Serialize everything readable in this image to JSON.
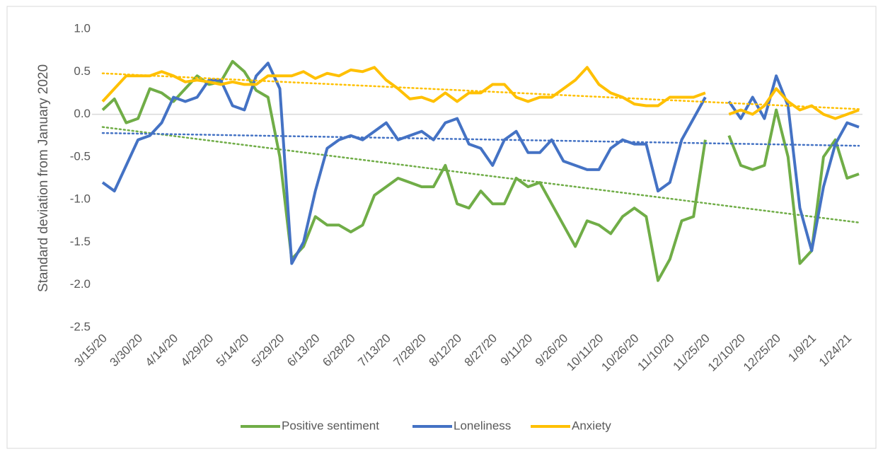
{
  "chart_data": {
    "type": "line",
    "y_label": "Standard deviation from January 2020",
    "categories": [
      "3/15/20",
      null,
      null,
      "3/30/20",
      null,
      null,
      "4/14/20",
      null,
      null,
      "4/29/20",
      null,
      null,
      "5/14/20",
      null,
      null,
      "5/29/20",
      null,
      null,
      "6/13/20",
      null,
      null,
      "6/28/20",
      null,
      null,
      "7/13/20",
      null,
      null,
      "7/28/20",
      null,
      null,
      "8/12/20",
      null,
      null,
      "8/27/20",
      null,
      null,
      "9/11/20",
      null,
      null,
      "9/26/20",
      null,
      null,
      "10/11/20",
      null,
      null,
      "10/26/20",
      null,
      null,
      "11/10/20",
      null,
      null,
      "11/25/20",
      null,
      null,
      "12/10/20",
      null,
      null,
      "12/25/20",
      null,
      null,
      "1/9/21",
      null,
      null,
      "1/24/21",
      null
    ],
    "series": [
      {
        "name": "Positive sentiment",
        "color": "#70ad47",
        "trend": [
          -0.15,
          -1.27
        ],
        "values": [
          0.05,
          0.18,
          -0.1,
          -0.05,
          0.3,
          0.25,
          0.15,
          0.3,
          0.45,
          0.35,
          0.38,
          0.62,
          0.5,
          0.28,
          0.2,
          -0.5,
          -1.7,
          -1.55,
          -1.2,
          -1.3,
          -1.3,
          -1.38,
          -1.3,
          -0.95,
          -0.85,
          -0.75,
          -0.8,
          -0.85,
          -0.85,
          -0.6,
          -1.05,
          -1.1,
          -0.9,
          -1.05,
          -1.05,
          -0.75,
          -0.85,
          -0.8,
          -1.05,
          -1.3,
          -1.55,
          -1.25,
          -1.3,
          -1.4,
          -1.2,
          -1.1,
          -1.2,
          -1.95,
          -1.7,
          -1.25,
          -1.2,
          -0.3,
          null,
          -0.25,
          -0.6,
          -0.65,
          -0.6,
          0.05,
          -0.5,
          -1.75,
          -1.6,
          -0.5,
          -0.3,
          -0.75,
          -0.7
        ]
      },
      {
        "name": "Loneliness",
        "color": "#4472c4",
        "trend": [
          -0.22,
          -0.37
        ],
        "values": [
          -0.8,
          -0.9,
          -0.6,
          -0.3,
          -0.25,
          -0.1,
          0.2,
          0.15,
          0.2,
          0.4,
          0.4,
          0.1,
          0.05,
          0.45,
          0.6,
          0.3,
          -1.75,
          -1.5,
          -0.9,
          -0.4,
          -0.3,
          -0.25,
          -0.3,
          -0.2,
          -0.1,
          -0.3,
          -0.25,
          -0.2,
          -0.3,
          -0.1,
          -0.05,
          -0.35,
          -0.4,
          -0.6,
          -0.3,
          -0.2,
          -0.45,
          -0.45,
          -0.3,
          -0.55,
          -0.6,
          -0.65,
          -0.65,
          -0.4,
          -0.3,
          -0.35,
          -0.35,
          -0.9,
          -0.8,
          -0.3,
          -0.05,
          0.2,
          null,
          0.15,
          -0.05,
          0.2,
          -0.05,
          0.45,
          0.1,
          -1.1,
          -1.6,
          -0.85,
          -0.35,
          -0.1,
          -0.15
        ]
      },
      {
        "name": "Anxiety",
        "color": "#ffc000",
        "trend": [
          0.48,
          0.06
        ],
        "values": [
          0.15,
          0.3,
          0.45,
          0.45,
          0.45,
          0.5,
          0.45,
          0.38,
          0.4,
          0.38,
          0.35,
          0.38,
          0.35,
          0.35,
          0.45,
          0.45,
          0.45,
          0.5,
          0.42,
          0.48,
          0.45,
          0.52,
          0.5,
          0.55,
          0.4,
          0.3,
          0.18,
          0.2,
          0.15,
          0.25,
          0.15,
          0.25,
          0.25,
          0.35,
          0.35,
          0.2,
          0.15,
          0.2,
          0.2,
          0.3,
          0.4,
          0.55,
          0.35,
          0.25,
          0.2,
          0.12,
          0.1,
          0.1,
          0.2,
          0.2,
          0.2,
          0.25,
          null,
          0.0,
          0.05,
          0.0,
          0.1,
          0.3,
          0.15,
          0.05,
          0.1,
          0.0,
          -0.05,
          0.0,
          0.05
        ]
      }
    ],
    "ylim": [
      -2.5,
      1.0
    ],
    "yticks": [
      {
        "value": -2.5,
        "label": "-2.5"
      },
      {
        "value": -2,
        "label": "-2.0"
      },
      -1.5,
      {
        "value": -1,
        "label": "-1.0"
      },
      -0.5,
      {
        "value": 0,
        "label": "0.0"
      },
      0.5,
      {
        "value": 1,
        "label": "1.0"
      }
    ],
    "legend": "bottom"
  }
}
